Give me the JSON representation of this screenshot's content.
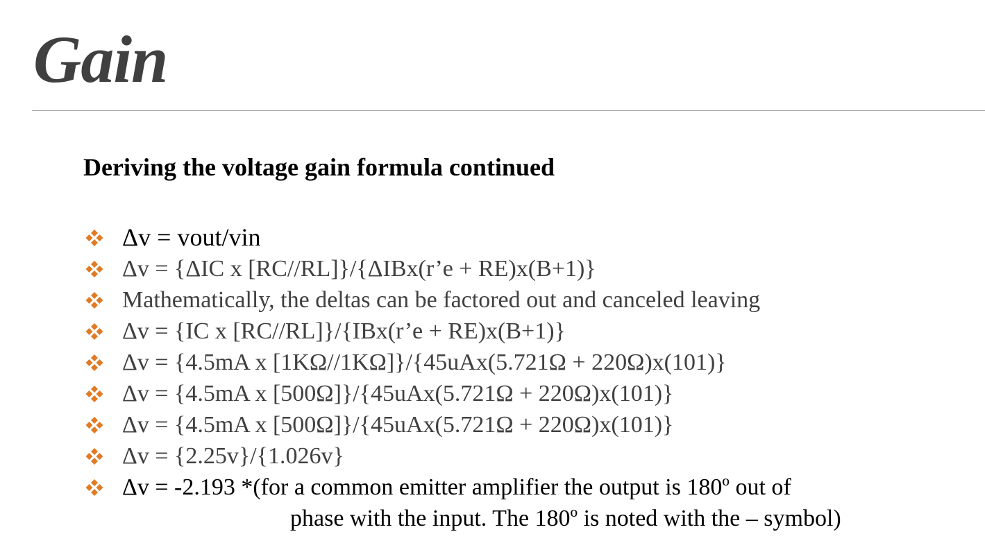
{
  "slide": {
    "title": "Gain",
    "subtitle": "Deriving the voltage gain formula continued",
    "accent_color": "#e07b24",
    "bullet_icon": "diamond-cluster-icon",
    "bullets": [
      {
        "text": "Δv = vout/vin"
      },
      {
        "text": "Δv = {ΔIC x [RC//RL]}/{ΔIBx(r’e + RE)x(B+1)}"
      },
      {
        "text": "Mathematically, the deltas can be factored out and canceled leaving"
      },
      {
        "text": "Δv = {IC x [RC//RL]}/{IBx(r’e + RE)x(B+1)}"
      },
      {
        "text": "Δv = {4.5mA x [1KΩ//1KΩ]}/{45uAx(5.721Ω + 220Ω)x(101)}"
      },
      {
        "text": "Δv = {4.5mA x [500Ω]}/{45uAx(5.721Ω + 220Ω)x(101)}"
      },
      {
        "text": "Δv = {4.5mA x [500Ω]}/{45uAx(5.721Ω + 220Ω)x(101)}"
      },
      {
        "text": "Δv = {2.25v}/{1.026v}"
      },
      {
        "text": "Δv = -2.193 *(for a common emitter amplifier the output is 180º out of",
        "continuation": "phase with the input. The 180º is noted with the – symbol)"
      }
    ]
  }
}
